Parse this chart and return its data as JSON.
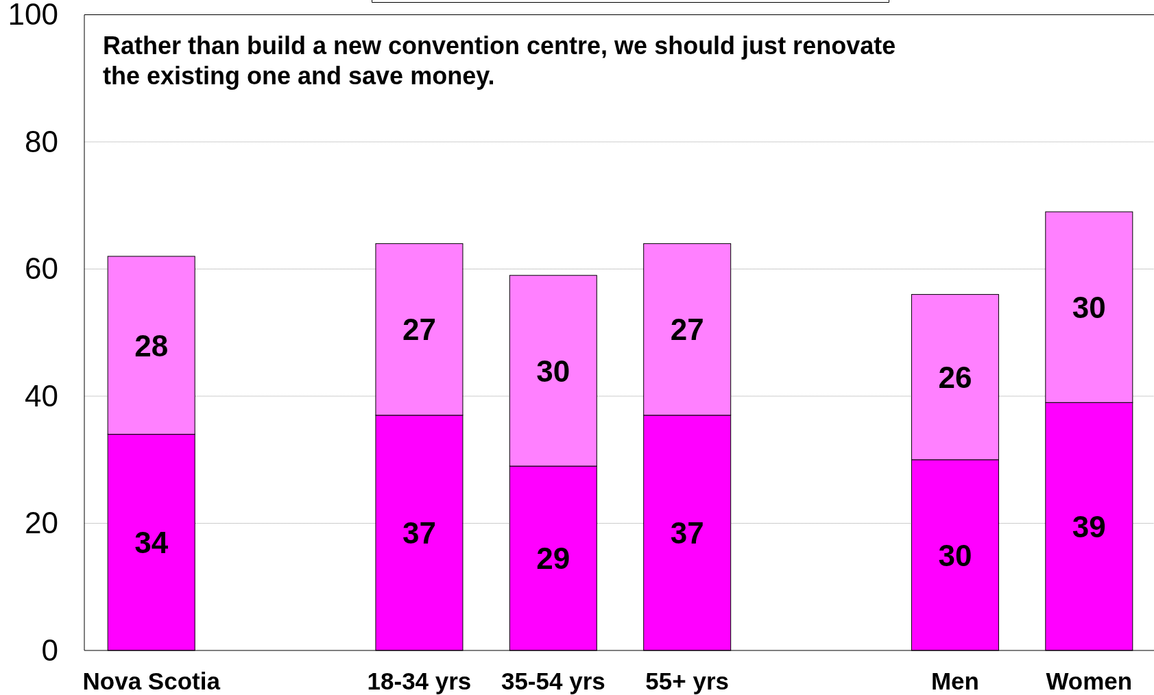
{
  "chart_data": {
    "type": "bar",
    "title": "Rather than build a new convention centre, we should just renovate\nthe existing one and save money.",
    "categories": [
      "Nova Scotia",
      null,
      "18-34 yrs",
      "35-54 yrs",
      "55+ yrs",
      null,
      "Men",
      "Women"
    ],
    "series": [
      {
        "color": "#ff00ff",
        "values": [
          34,
          null,
          37,
          29,
          37,
          null,
          30,
          39
        ]
      },
      {
        "color": "#ff80ff",
        "values": [
          28,
          null,
          27,
          30,
          27,
          null,
          26,
          30
        ]
      }
    ],
    "stacked": true,
    "data_labels": true,
    "grid": "y",
    "ylim": [
      0,
      100
    ],
    "yticks": [
      0,
      20,
      40,
      60,
      80,
      100
    ]
  }
}
